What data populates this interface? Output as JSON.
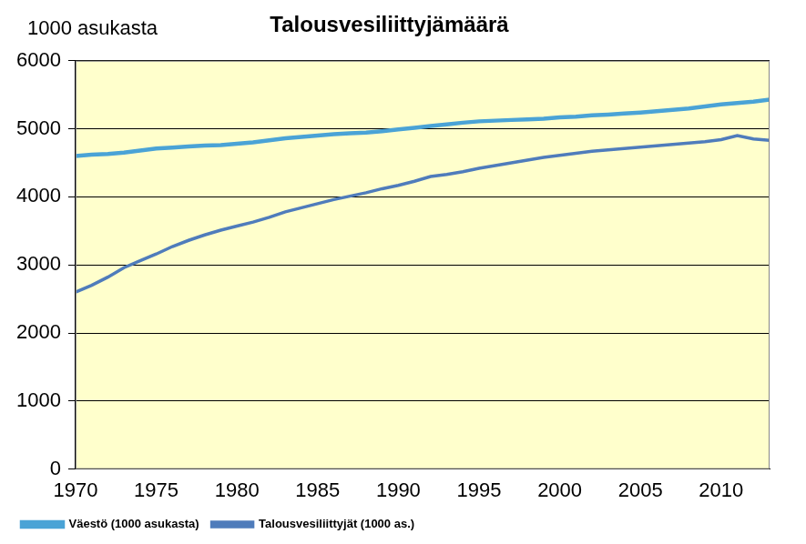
{
  "chart_data": {
    "type": "line",
    "title": "Talousvesiliittyjämäärä",
    "ylabel": "1000 asukasta",
    "x": [
      1970,
      1971,
      1972,
      1973,
      1974,
      1975,
      1976,
      1977,
      1978,
      1979,
      1980,
      1981,
      1982,
      1983,
      1984,
      1985,
      1986,
      1987,
      1988,
      1989,
      1990,
      1991,
      1992,
      1993,
      1994,
      1995,
      1996,
      1997,
      1998,
      1999,
      2000,
      2001,
      2002,
      2003,
      2004,
      2005,
      2006,
      2007,
      2008,
      2009,
      2010,
      2011,
      2012,
      2013
    ],
    "series": [
      {
        "name": "Väestö (1000 asukasta)",
        "color": "#4aa3d6",
        "values": [
          4600,
          4620,
          4630,
          4650,
          4680,
          4710,
          4725,
          4740,
          4755,
          4760,
          4780,
          4800,
          4830,
          4860,
          4880,
          4900,
          4920,
          4935,
          4945,
          4965,
          4990,
          5015,
          5040,
          5065,
          5090,
          5110,
          5120,
          5130,
          5140,
          5150,
          5170,
          5180,
          5200,
          5210,
          5225,
          5240,
          5260,
          5280,
          5300,
          5330,
          5360,
          5380,
          5400,
          5430
        ]
      },
      {
        "name": "Talousvesiliittyjät (1000 as.)",
        "color": "#4f7cbb",
        "values": [
          2600,
          2700,
          2820,
          2960,
          3060,
          3160,
          3270,
          3360,
          3440,
          3510,
          3570,
          3630,
          3700,
          3780,
          3840,
          3900,
          3960,
          4010,
          4060,
          4120,
          4170,
          4230,
          4300,
          4330,
          4370,
          4420,
          4460,
          4500,
          4540,
          4580,
          4610,
          4640,
          4670,
          4690,
          4710,
          4730,
          4750,
          4770,
          4790,
          4810,
          4840,
          4900,
          4850,
          4830
        ]
      }
    ],
    "xlim": [
      1970,
      2013
    ],
    "xticks": [
      1970,
      1975,
      1980,
      1985,
      1990,
      1995,
      2000,
      2005,
      2010
    ],
    "ylim": [
      0,
      6000
    ],
    "yticks": [
      0,
      1000,
      2000,
      3000,
      4000,
      5000,
      6000
    ],
    "grid": true,
    "legend": "bottom"
  }
}
